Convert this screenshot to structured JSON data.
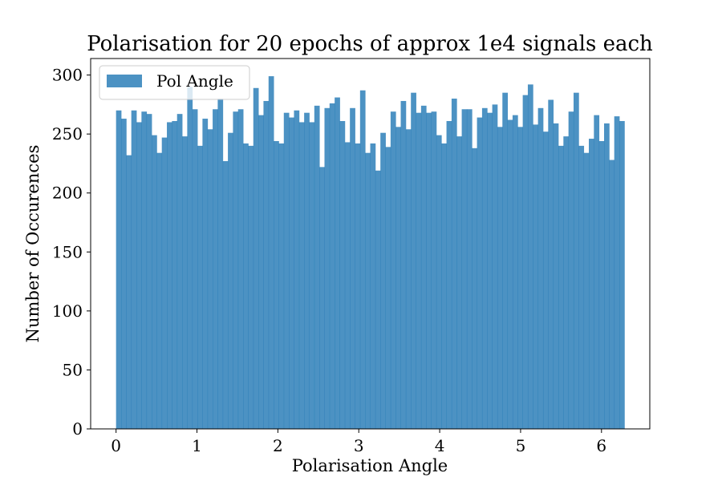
{
  "chart_data": {
    "type": "bar",
    "title": "Polarisation for 20 epochs of approx 1e4 signals each",
    "xlabel": "Polarisation Angle",
    "ylabel": "Number of Occurences",
    "xlim": [
      -0.314,
      6.597
    ],
    "ylim": [
      0,
      314
    ],
    "bin_range": [
      0,
      6.2832
    ],
    "xticks": [
      0,
      1,
      2,
      3,
      4,
      5,
      6
    ],
    "yticks": [
      0,
      50,
      100,
      150,
      200,
      250,
      300
    ],
    "bar_color": "#1f77b4",
    "legend": {
      "placement": "upper-left"
    },
    "series": [
      {
        "name": "Pol Angle",
        "values": [
          270,
          263,
          232,
          270,
          260,
          269,
          267,
          249,
          234,
          247,
          260,
          261,
          267,
          248,
          290,
          271,
          240,
          263,
          254,
          271,
          280,
          227,
          251,
          269,
          271,
          242,
          240,
          289,
          266,
          278,
          299,
          244,
          242,
          268,
          264,
          270,
          260,
          268,
          260,
          274,
          222,
          272,
          276,
          281,
          261,
          243,
          272,
          242,
          287,
          234,
          242,
          219,
          251,
          239,
          269,
          256,
          278,
          254,
          285,
          268,
          274,
          268,
          269,
          249,
          242,
          261,
          280,
          248,
          271,
          271,
          238,
          264,
          272,
          268,
          275,
          256,
          285,
          262,
          266,
          256,
          283,
          292,
          258,
          272,
          252,
          279,
          259,
          240,
          248,
          269,
          285,
          240,
          234,
          246,
          266,
          244,
          259,
          228,
          265,
          261
        ]
      }
    ]
  }
}
